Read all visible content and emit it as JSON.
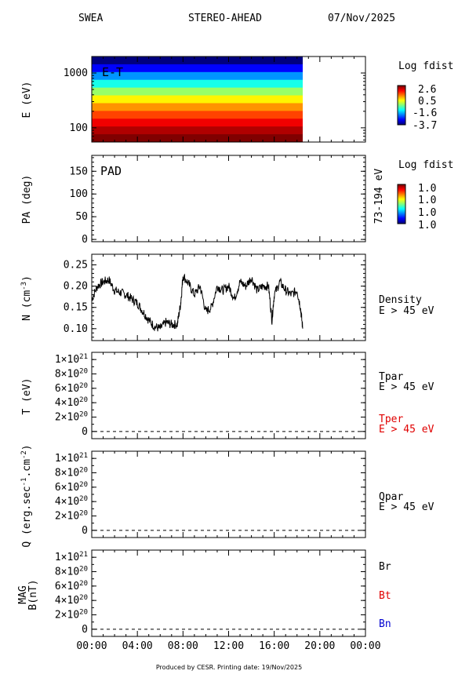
{
  "header": {
    "instrument": "SWEA",
    "spacecraft": "STEREO-AHEAD",
    "date": "07/Nov/2025"
  },
  "footer": "Produced by CESR.   Printing date: 19/Nov/2025",
  "colorbars": {
    "et": {
      "title": "Log fdist",
      "ticks": [
        "2.6",
        "0.5",
        "-1.6",
        "-3.7"
      ]
    },
    "pad": {
      "title": "Log fdist",
      "ticks": [
        "1.0",
        "1.0",
        "1.0",
        "1.0"
      ]
    }
  },
  "x_ticks": [
    "00:00",
    "04:00",
    "08:00",
    "12:00",
    "16:00",
    "20:00",
    "00:00"
  ],
  "chart_data": [
    {
      "type": "heatmap",
      "title": "E-T",
      "ylabel": "E (eV)",
      "yscale": "log",
      "yticks": [
        {
          "value": 100,
          "label": "100"
        },
        {
          "value": 1000,
          "label": "1000"
        }
      ],
      "ylim": [
        55,
        2000
      ],
      "x_hours_covered": [
        0,
        18.5
      ],
      "colorbar": {
        "title": "Log fdist",
        "range": [
          -3.7,
          2.6
        ]
      },
      "rows_log_fdist_high_to_low_energy": [
        -3.7,
        -2.9,
        -2.0,
        -1.2,
        -0.4,
        0.3,
        0.9,
        1.4,
        1.9,
        2.3,
        2.6
      ]
    },
    {
      "type": "heatmap",
      "title": "PAD",
      "ylabel": "PA (deg)",
      "right_label": "73-194 eV",
      "yticks": [
        0,
        50,
        100,
        150
      ],
      "ylim": [
        -5,
        185
      ],
      "colorbar": {
        "title": "Log fdist",
        "ticks": [
          "1.0",
          "1.0",
          "1.0",
          "1.0"
        ]
      }
    },
    {
      "type": "line",
      "ylabel": "N (cm-3)",
      "ylim": [
        0.072,
        0.275
      ],
      "yticks": [
        {
          "value": 0.1,
          "label": "0.10"
        },
        {
          "value": 0.15,
          "label": "0.15"
        },
        {
          "value": 0.2,
          "label": "0.20"
        },
        {
          "value": 0.25,
          "label": "0.25"
        }
      ],
      "series": [
        {
          "name": "Density",
          "sublabel": "E > 45 eV",
          "x": [
            0,
            0.5,
            1.0,
            1.5,
            2.0,
            2.5,
            3.0,
            3.5,
            4.0,
            4.5,
            5.0,
            5.5,
            6.0,
            6.5,
            7.0,
            7.5,
            7.8,
            8.0,
            8.5,
            9.0,
            9.5,
            10.0,
            10.5,
            11.0,
            11.5,
            12.0,
            12.5,
            13.0,
            13.5,
            14.0,
            14.5,
            15.0,
            15.5,
            15.8,
            16.0,
            16.5,
            17.0,
            17.5,
            18.0,
            18.3,
            18.5
          ],
          "y": [
            0.17,
            0.2,
            0.21,
            0.215,
            0.19,
            0.185,
            0.18,
            0.17,
            0.16,
            0.14,
            0.12,
            0.105,
            0.1,
            0.115,
            0.11,
            0.11,
            0.16,
            0.225,
            0.205,
            0.18,
            0.2,
            0.14,
            0.15,
            0.2,
            0.19,
            0.2,
            0.17,
            0.21,
            0.2,
            0.22,
            0.19,
            0.2,
            0.2,
            0.12,
            0.18,
            0.21,
            0.19,
            0.18,
            0.19,
            0.15,
            0.1
          ]
        }
      ]
    },
    {
      "type": "line",
      "ylabel": "T (eV)",
      "ylim": [
        -1e+20,
        1.1e+21
      ],
      "yticks": [
        {
          "value": 0,
          "label": "0"
        },
        {
          "value": 2e+20,
          "label": "2×10^20"
        },
        {
          "value": 4e+20,
          "label": "4×10^20"
        },
        {
          "value": 6e+20,
          "label": "6×10^20"
        },
        {
          "value": 8e+20,
          "label": "8×10^20"
        },
        {
          "value": 1e+21,
          "label": "1×10^21"
        }
      ],
      "series": [
        {
          "name": "Tpar",
          "sublabel": "E > 45 eV",
          "color": "#000000",
          "x": [],
          "y": []
        },
        {
          "name": "Tper",
          "sublabel": "E > 45 eV",
          "color": "#e00000",
          "x": [],
          "y": []
        }
      ],
      "baseline": {
        "value": 0,
        "style": "dashed"
      }
    },
    {
      "type": "line",
      "ylabel": "Q (erg.sec-1.cm-2)",
      "ylim": [
        -1e+20,
        1.1e+21
      ],
      "yticks": [
        {
          "value": 0,
          "label": "0"
        },
        {
          "value": 2e+20,
          "label": "2×10^20"
        },
        {
          "value": 4e+20,
          "label": "4×10^20"
        },
        {
          "value": 6e+20,
          "label": "6×10^20"
        },
        {
          "value": 8e+20,
          "label": "8×10^20"
        },
        {
          "value": 1e+21,
          "label": "1×10^21"
        }
      ],
      "series": [
        {
          "name": "Qpar",
          "sublabel": "E > 45 eV",
          "color": "#000000",
          "x": [],
          "y": []
        }
      ],
      "baseline": {
        "value": 0,
        "style": "dashed"
      }
    },
    {
      "type": "line",
      "ylabel": "MAG B(nT)",
      "ylim": [
        -1e+20,
        1.1e+21
      ],
      "yticks": [
        {
          "value": 0,
          "label": "0"
        },
        {
          "value": 2e+20,
          "label": "2×10^20"
        },
        {
          "value": 4e+20,
          "label": "4×10^20"
        },
        {
          "value": 6e+20,
          "label": "6×10^20"
        },
        {
          "value": 8e+20,
          "label": "8×10^20"
        },
        {
          "value": 1e+21,
          "label": "1×10^21"
        }
      ],
      "series": [
        {
          "name": "Br",
          "color": "#000000",
          "x": [],
          "y": []
        },
        {
          "name": "Bt",
          "color": "#e00000",
          "x": [],
          "y": []
        },
        {
          "name": "Bn",
          "color": "#0000d0",
          "x": [],
          "y": []
        }
      ],
      "baseline": {
        "value": 0,
        "style": "dashed"
      }
    }
  ]
}
